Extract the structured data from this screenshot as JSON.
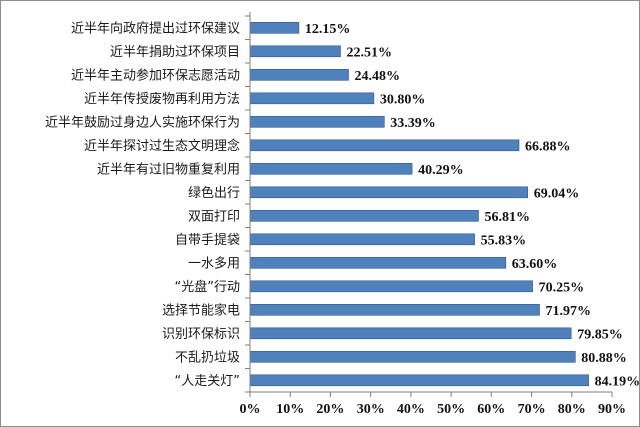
{
  "chart_data": {
    "type": "bar",
    "orientation": "horizontal",
    "categories": [
      "近半年向政府提出过环保建议",
      "近半年捐助过环保项目",
      "近半年主动参加环保志愿活动",
      "近半年传授废物再利用方法",
      "近半年鼓励过身边人实施环保行为",
      "近半年探讨过生态文明理念",
      "近半年有过旧物重复利用",
      "绿色出行",
      "双面打印",
      "自带手提袋",
      "一水多用",
      "“光盘”行动",
      "选择节能家电",
      "识别环保标识",
      "不乱扔垃圾",
      "“人走关灯”"
    ],
    "values": [
      12.15,
      22.51,
      24.48,
      30.8,
      33.39,
      66.88,
      40.29,
      69.04,
      56.81,
      55.83,
      63.6,
      70.25,
      71.97,
      79.85,
      80.88,
      84.19
    ],
    "value_labels": [
      "12.15%",
      "22.51%",
      "24.48%",
      "30.80%",
      "33.39%",
      "66.88%",
      "40.29%",
      "69.04%",
      "56.81%",
      "55.83%",
      "63.60%",
      "70.25%",
      "71.97%",
      "79.85%",
      "80.88%",
      "84.19%"
    ],
    "x_ticks": [
      "0%",
      "10%",
      "20%",
      "30%",
      "40%",
      "50%",
      "60%",
      "70%",
      "80%",
      "90%"
    ],
    "xlim": [
      0,
      90
    ],
    "grid": false,
    "legend": "none",
    "bar_color": "#4f81bd",
    "bar_edge_color": "#2f5a8f",
    "title": "",
    "xlabel": "",
    "ylabel": ""
  }
}
